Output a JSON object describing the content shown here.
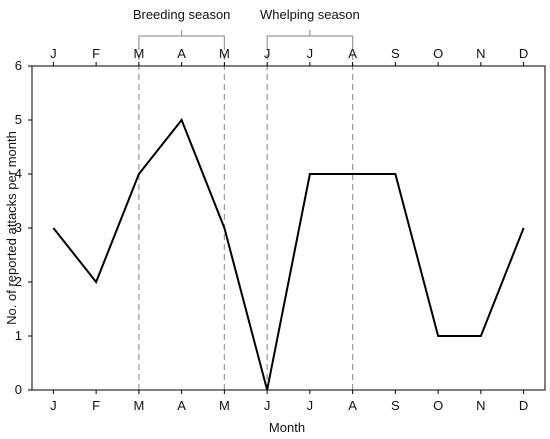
{
  "chart_data": {
    "type": "line",
    "title": "",
    "xlabel": "Month",
    "ylabel": "No. of reported attacks per month",
    "categories": [
      "J",
      "F",
      "M",
      "A",
      "M",
      "J",
      "J",
      "A",
      "S",
      "O",
      "N",
      "D"
    ],
    "series": [
      {
        "values": [
          3,
          2,
          4,
          5,
          3,
          0,
          4,
          4,
          4,
          1,
          1,
          3
        ]
      }
    ],
    "ylim": [
      0,
      6
    ],
    "yticks": [
      0,
      1,
      2,
      3,
      4,
      5,
      6
    ],
    "grid": false,
    "top_axis_labels": true,
    "annotations": [
      {
        "label": "Breeding season",
        "start_index": 2,
        "end_index": 4
      },
      {
        "label": "Whelping season",
        "start_index": 5,
        "end_index": 7
      }
    ],
    "line_color": "#000000",
    "marker_line_color": "#999999"
  }
}
